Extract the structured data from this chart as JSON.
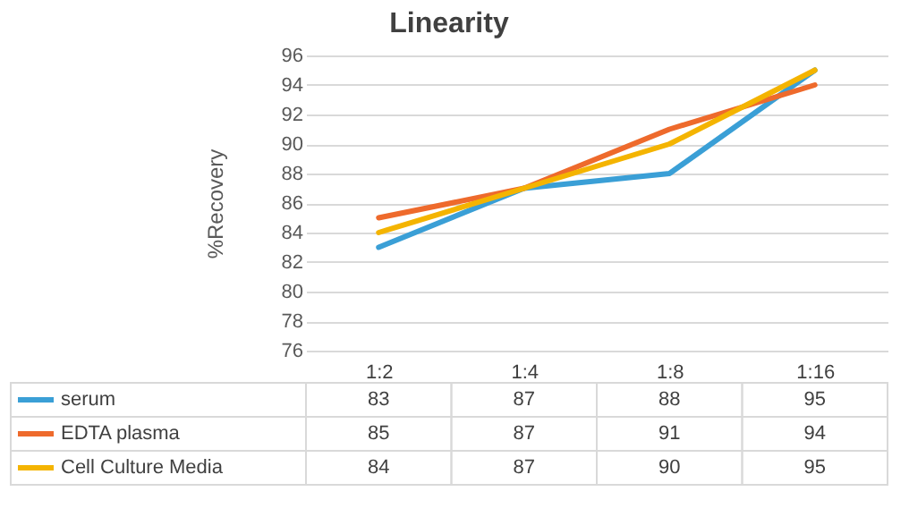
{
  "chart_data": {
    "type": "line",
    "title": "Linearity",
    "ylabel": "%Recovery",
    "categories": [
      "1:2",
      "1:4",
      "1:8",
      "1:16"
    ],
    "series": [
      {
        "name": "serum",
        "color": "#3a9fd6",
        "values": [
          83,
          87,
          88,
          95
        ]
      },
      {
        "name": "EDTA plasma",
        "color": "#ee6a2c",
        "values": [
          85,
          87,
          91,
          94
        ]
      },
      {
        "name": "Cell Culture Media",
        "color": "#f4b400",
        "values": [
          84,
          87,
          90,
          95
        ]
      }
    ],
    "ylim": [
      76,
      96
    ],
    "yticks": [
      76,
      78,
      80,
      82,
      84,
      86,
      88,
      90,
      92,
      94,
      96
    ],
    "grid": "y",
    "legend": "bottom",
    "data_labels": true,
    "marker": "none",
    "line_style": "solid"
  }
}
